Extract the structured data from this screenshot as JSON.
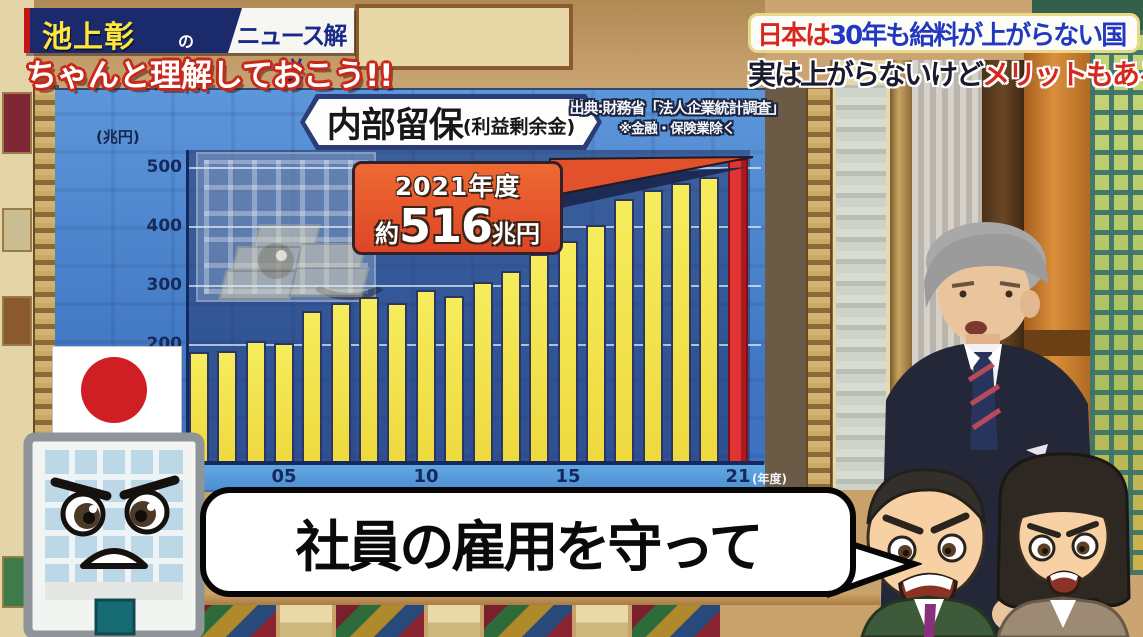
{
  "program": {
    "title_main": "池上彰",
    "title_no": "の",
    "title_rest": "ニュース解説",
    "subtitle": "ちゃんと理解しておこう!!"
  },
  "headline": {
    "line1_lead": "日本は",
    "line1_rest": "30年も給料が上がらない国",
    "line2_lead": "実は上がらないけど",
    "line2_accent": "メリットもある!?"
  },
  "chart": {
    "title": "内部留保",
    "title_sub": "(利益剰余金)",
    "source_line1": "出典:財務省「法人企業統計調査」",
    "source_line2": "※金融・保険業除く",
    "y_unit": "(兆円)",
    "x_unit": "(年度)",
    "callout_year": "2021年度",
    "callout_approx": "約",
    "callout_value": "516",
    "callout_unit": "兆円"
  },
  "chart_data": {
    "type": "bar",
    "title": "内部留保(利益剰余金)",
    "xlabel": "(年度)",
    "ylabel": "(兆円)",
    "x": [
      2002,
      2003,
      2004,
      2005,
      2006,
      2007,
      2008,
      2009,
      2010,
      2011,
      2012,
      2013,
      2014,
      2015,
      2016,
      2017,
      2018,
      2019,
      2020,
      2021
    ],
    "values": [
      188,
      189,
      206,
      203,
      257,
      271,
      281,
      271,
      294,
      283,
      306,
      325,
      354,
      376,
      404,
      447,
      462,
      475,
      484,
      516
    ],
    "highlight_x": 2021,
    "bar_color": "#f2e24a",
    "highlight_color": "#e23335",
    "ylim": [
      0,
      530
    ],
    "yticks": [
      200,
      300,
      400,
      500
    ],
    "xtick_labels": {
      "2005": "05",
      "2010": "10",
      "2015": "15",
      "2021": "21"
    },
    "grid": true,
    "legend": null,
    "annotation": "2021年度 約516兆円"
  },
  "bubble": {
    "text": "社員の雇用を守って"
  },
  "colors": {
    "bar": "#f2e24a",
    "highlight": "#e23335",
    "panel_blue": "#4a82cc",
    "accent_red": "#d6281e",
    "headline_blue": "#2338c0",
    "navy": "#16295c",
    "callout_bg": "#e2512b"
  }
}
